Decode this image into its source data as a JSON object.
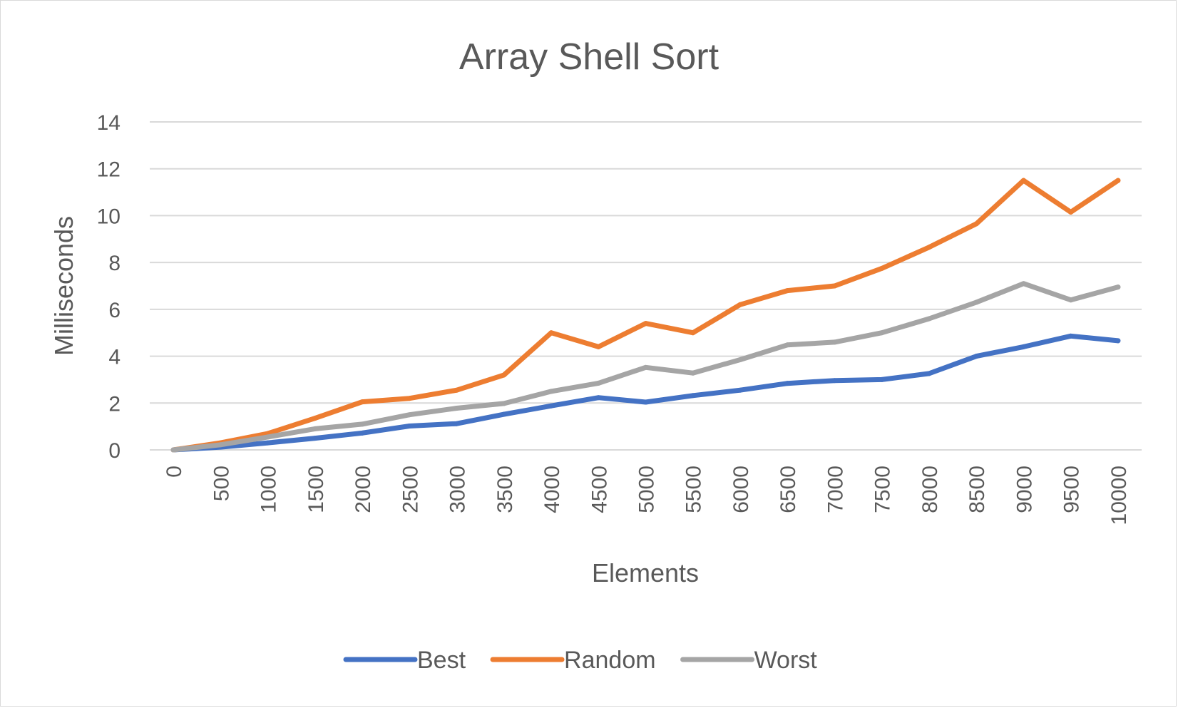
{
  "chart_data": {
    "type": "line",
    "title": "Array Shell Sort",
    "xlabel": "Elements",
    "ylabel": "Milliseconds",
    "categories": [
      "0",
      "500",
      "1000",
      "1500",
      "2000",
      "2500",
      "3000",
      "3500",
      "4000",
      "4500",
      "5000",
      "5500",
      "6000",
      "6500",
      "7000",
      "7500",
      "8000",
      "8500",
      "9000",
      "9500",
      "10000"
    ],
    "ylim": [
      0,
      14
    ],
    "yticks": [
      "0",
      "2",
      "4",
      "6",
      "8",
      "10",
      "12",
      "14"
    ],
    "grid": true,
    "legend_position": "bottom",
    "series": [
      {
        "name": "Best",
        "color": "#4472c4",
        "values": [
          0,
          0.12,
          0.3,
          0.5,
          0.72,
          1.02,
          1.12,
          1.52,
          1.88,
          2.23,
          2.04,
          2.32,
          2.55,
          2.84,
          2.96,
          3.0,
          3.26,
          4.0,
          4.4,
          4.86,
          4.66
        ]
      },
      {
        "name": "Random",
        "color": "#ed7d31",
        "values": [
          0,
          0.3,
          0.7,
          1.35,
          2.05,
          2.2,
          2.55,
          3.2,
          5.0,
          4.4,
          5.4,
          5.0,
          6.2,
          6.8,
          7.0,
          7.75,
          8.65,
          9.65,
          11.5,
          10.15,
          11.5
        ]
      },
      {
        "name": "Worst",
        "color": "#a5a5a5",
        "values": [
          0,
          0.22,
          0.55,
          0.9,
          1.1,
          1.5,
          1.78,
          1.98,
          2.5,
          2.85,
          3.52,
          3.28,
          3.85,
          4.48,
          4.6,
          5.0,
          5.6,
          6.3,
          7.1,
          6.4,
          6.95
        ]
      }
    ]
  }
}
